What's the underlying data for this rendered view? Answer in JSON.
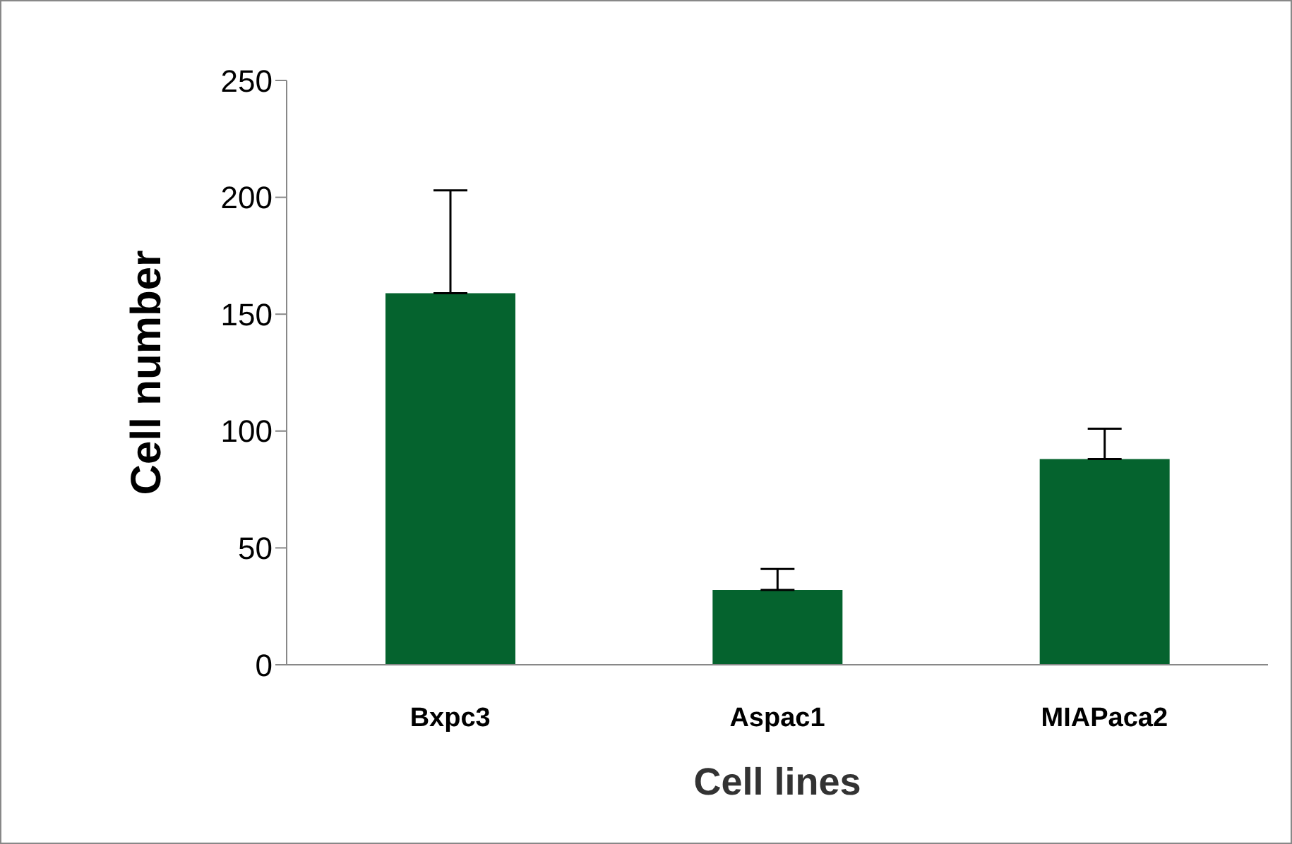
{
  "chart_data": {
    "type": "bar",
    "xlabel": "Cell lines",
    "ylabel": "Cell number",
    "categories": [
      "Bxpc3",
      "Aspac1",
      "MIAPaca2"
    ],
    "values": [
      159,
      32,
      88
    ],
    "errors": [
      [
        159,
        203
      ],
      [
        32,
        41
      ],
      [
        88,
        101
      ]
    ],
    "color": "#05632e",
    "ylim": [
      0,
      250
    ],
    "yticks": [
      0,
      50,
      100,
      150,
      200,
      250
    ],
    "grid": false,
    "legend": false
  }
}
